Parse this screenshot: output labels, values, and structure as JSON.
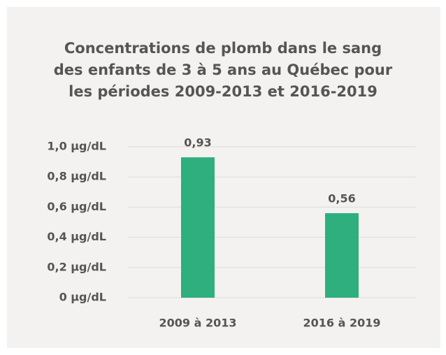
{
  "chart_data": {
    "type": "bar",
    "title": [
      "Concentrations de plomb dans le sang",
      "des enfants de 3 à 5 ans au Québec pour",
      "les périodes 2009-2013 et 2016-2019"
    ],
    "categories": [
      "2009 à 2013",
      "2016 à 2019"
    ],
    "values": [
      0.93,
      0.56
    ],
    "value_labels": [
      "0,93",
      "0,56"
    ],
    "color": "#2eaf7d",
    "ylim": [
      0,
      1.0
    ],
    "yticks": [
      {
        "value": 0,
        "label": "0 µg/dL"
      },
      {
        "value": 0.2,
        "label": "0,2 µg/dL"
      },
      {
        "value": 0.4,
        "label": "0,4 µg/dL"
      },
      {
        "value": 0.6,
        "label": "0,6 µg/dL"
      },
      {
        "value": 0.8,
        "label": "0,8 µg/dL"
      },
      {
        "value": 1.0,
        "label": "1,0 µg/dL"
      }
    ],
    "grid": true
  }
}
